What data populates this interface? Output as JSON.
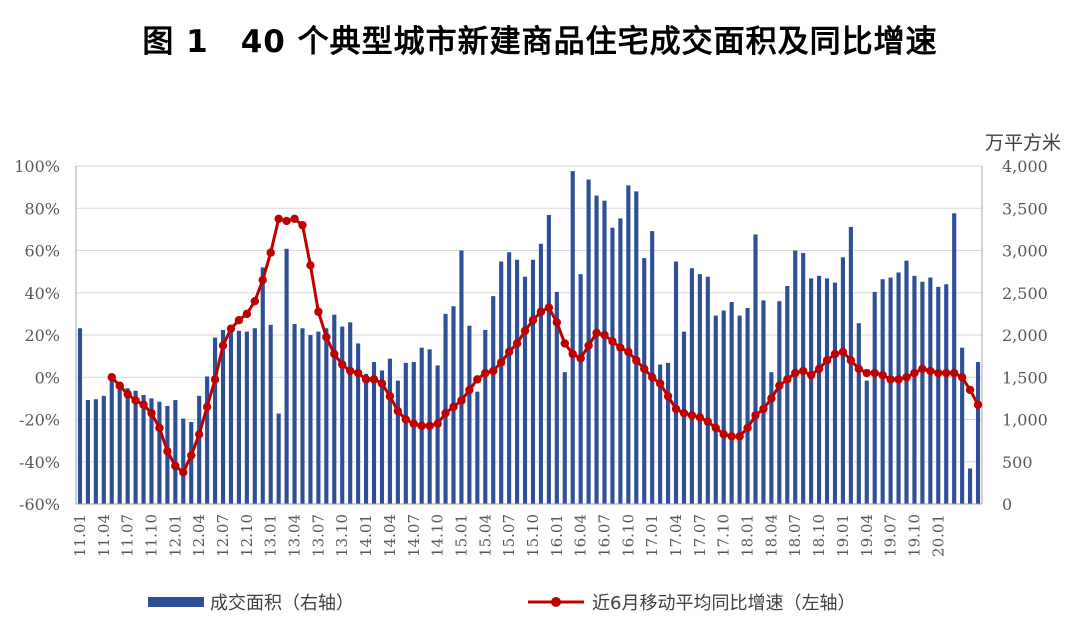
{
  "title": "图 1　40 个典型城市新建商品住宅成交面积及同比增速",
  "colors": {
    "bar": "#2e4f95",
    "line": "#c00000",
    "grid": "#d9d9d9",
    "axis": "#a6a6a6"
  },
  "chart_data": {
    "type": "bar+line",
    "title": "图 1　40 个典型城市新建商品住宅成交面积及同比增速",
    "left_axis": {
      "ylim": [
        -60,
        100
      ],
      "ticks": [
        "100%",
        "80%",
        "60%",
        "40%",
        "20%",
        "0%",
        "-20%",
        "-40%",
        "-60%"
      ]
    },
    "right_axis": {
      "unit": "万平方米",
      "ylim": [
        0,
        4000
      ],
      "ticks": [
        "4,000",
        "3,500",
        "3,000",
        "2,500",
        "2,000",
        "1,500",
        "1,000",
        "500",
        "0"
      ]
    },
    "x_tick_labels": [
      "11.01",
      "11.04",
      "11.07",
      "11.10",
      "12.01",
      "12.04",
      "12.07",
      "12.10",
      "13.01",
      "13.04",
      "13.07",
      "13.10",
      "14.01",
      "14.04",
      "14.07",
      "14.10",
      "15.01",
      "15.04",
      "15.07",
      "15.10",
      "16.01",
      "16.04",
      "16.07",
      "16.10",
      "17.01",
      "17.04",
      "17.07",
      "17.10",
      "18.01",
      "18.04",
      "18.07",
      "18.10",
      "19.01",
      "19.04",
      "19.07",
      "19.10",
      "20.01"
    ],
    "grid": true,
    "series": [
      {
        "name": "成交面积（右轴）",
        "axis": "right",
        "type": "bar",
        "values": [
          2080,
          1230,
          1240,
          1280,
          1540,
          1400,
          1370,
          1340,
          1290,
          1250,
          1210,
          1160,
          1230,
          1010,
          970,
          1280,
          1510,
          1970,
          2060,
          2110,
          2050,
          2040,
          2080,
          2800,
          2120,
          1070,
          3020,
          2130,
          2080,
          2000,
          2040,
          2080,
          2240,
          2100,
          2150,
          1900,
          1540,
          1680,
          1580,
          1720,
          1460,
          1670,
          1680,
          1850,
          1830,
          1640,
          2250,
          2340,
          3000,
          2110,
          1330,
          2060,
          2460,
          2870,
          2980,
          2890,
          2690,
          2890,
          3080,
          3420,
          2510,
          1560,
          3940,
          2720,
          3840,
          3650,
          3590,
          3270,
          3380,
          3770,
          3700,
          2910,
          3230,
          1650,
          1670,
          2870,
          2040,
          2790,
          2720,
          2690,
          2230,
          2290,
          2390,
          2230,
          2320,
          3190,
          2410,
          1560,
          2400,
          2580,
          3000,
          2970,
          2670,
          2700,
          2670,
          2620,
          2920,
          3280,
          2140,
          1460,
          2510,
          2660,
          2680,
          2740,
          2880,
          2700,
          2630,
          2680,
          2570,
          2600,
          3440,
          1850,
          420,
          1680
        ]
      },
      {
        "name": "近6月移动平均同比增速（左轴）",
        "axis": "left",
        "type": "line",
        "start_index": 4,
        "values": [
          0,
          -4,
          -8,
          -11,
          -13,
          -17,
          -24,
          -35,
          -42,
          -45,
          -37,
          -27,
          -14,
          -1,
          15,
          23,
          27,
          30,
          36,
          46,
          59,
          75,
          74,
          75,
          72,
          53,
          31,
          19,
          11,
          6,
          3,
          2,
          -1,
          -1,
          -3,
          -9,
          -16,
          -20,
          -22,
          -23,
          -23,
          -22,
          -17,
          -14,
          -11,
          -6,
          -1,
          2,
          3,
          7,
          12,
          16,
          22,
          27,
          31,
          33,
          26,
          16,
          11,
          9,
          15,
          21,
          20,
          17,
          14,
          12,
          8,
          4,
          0,
          -3,
          -9,
          -15,
          -17,
          -18,
          -19,
          -21,
          -24,
          -27,
          -28,
          -28,
          -24,
          -18,
          -15,
          -10,
          -4,
          -1,
          2,
          3,
          1,
          4,
          8,
          11,
          12,
          8,
          4,
          2,
          2,
          1,
          -1,
          -1,
          0,
          2,
          4,
          3,
          2,
          2,
          2,
          0,
          -6,
          -13
        ]
      }
    ],
    "legend": {
      "position": "bottom"
    }
  }
}
